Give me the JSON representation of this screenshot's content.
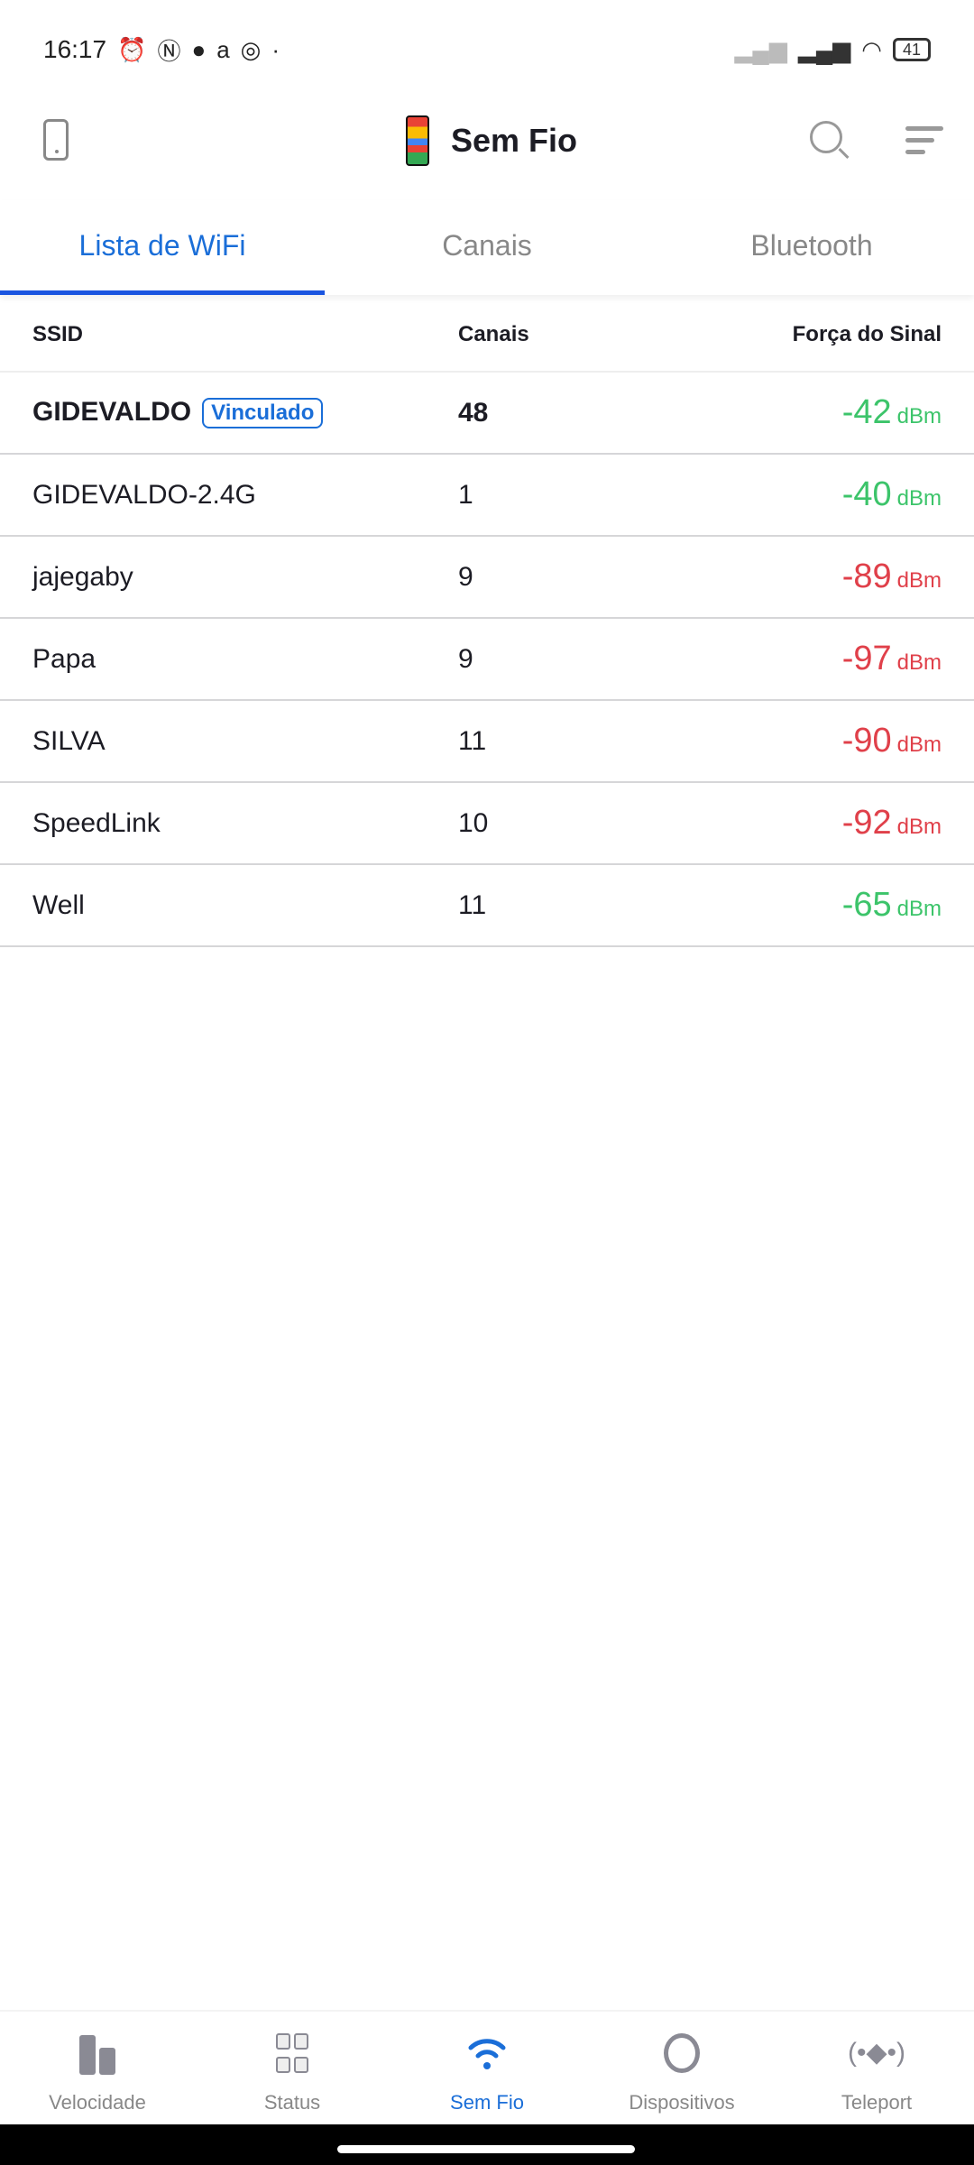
{
  "status_bar": {
    "time": "16:17",
    "battery": "41"
  },
  "header": {
    "title": "Sem Fio"
  },
  "tabs": [
    {
      "label": "Lista de WiFi",
      "active": true
    },
    {
      "label": "Canais"
    },
    {
      "label": "Bluetooth"
    }
  ],
  "table": {
    "columns": [
      "SSID",
      "Canais",
      "Força do Sinal"
    ],
    "unit": "dBm",
    "linked_badge": "Vinculado",
    "rows": [
      {
        "ssid": "GIDEVALDO",
        "channel": "48",
        "signal": "-42",
        "linked": true,
        "color": "#3cc46a"
      },
      {
        "ssid": "GIDEVALDO-2.4G",
        "channel": "1",
        "signal": "-40",
        "color": "#3cc46a"
      },
      {
        "ssid": "jajegaby",
        "channel": "9",
        "signal": "-89",
        "color": "#e0404a"
      },
      {
        "ssid": "Papa",
        "channel": "9",
        "signal": "-97",
        "color": "#e0404a"
      },
      {
        "ssid": "SILVA",
        "channel": "11",
        "signal": "-90",
        "color": "#e0404a"
      },
      {
        "ssid": "SpeedLink",
        "channel": "10",
        "signal": "-92",
        "color": "#e0404a"
      },
      {
        "ssid": "Well",
        "channel": "11",
        "signal": "-65",
        "color": "#3cc46a"
      }
    ]
  },
  "nav": [
    {
      "label": "Velocidade",
      "icon": "bar-chart-icon"
    },
    {
      "label": "Status",
      "icon": "grid-icon"
    },
    {
      "label": "Sem Fio",
      "icon": "wifi-icon",
      "active": true
    },
    {
      "label": "Dispositivos",
      "icon": "circle-icon"
    },
    {
      "label": "Teleport",
      "icon": "teleport-icon"
    }
  ],
  "colors": {
    "accent": "#1a6ed8",
    "good": "#3cc46a",
    "bad": "#e0404a"
  }
}
